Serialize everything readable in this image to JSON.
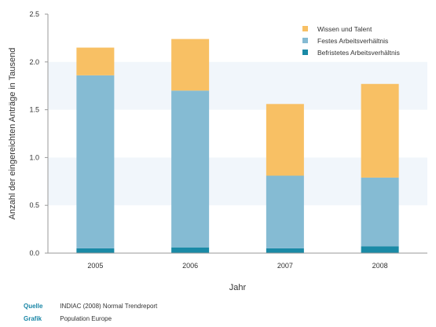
{
  "chart_data": {
    "type": "bar",
    "stacked": true,
    "categories": [
      "2005",
      "2006",
      "2007",
      "2008"
    ],
    "series": [
      {
        "name": "Befristetes Arbeitsverhältnis",
        "values": [
          0.05,
          0.06,
          0.05,
          0.07
        ],
        "color": "#1a8aa6"
      },
      {
        "name": "Festes Arbeitsverhältnis",
        "values": [
          1.81,
          1.64,
          0.76,
          0.72
        ],
        "color": "#85bbd3"
      },
      {
        "name": "Wissen und Talent",
        "values": [
          0.29,
          0.54,
          0.75,
          0.98
        ],
        "color": "#f8c064"
      }
    ],
    "legend_order": [
      2,
      1,
      0
    ],
    "legend_position": "top-right",
    "xlabel": "Jahr",
    "ylabel": "Anzahl der eingereichten Anträge in Tausend",
    "ylim": [
      0,
      2.5
    ],
    "yticks": [
      "0.0",
      "0.5",
      "1.0",
      "1.5",
      "2.0",
      "2.5"
    ],
    "grid": "alternating horizontal bands",
    "band_color": "#f1f6fb"
  },
  "footer": {
    "source_label": "Quelle",
    "source_text": "INDIAC (2008) Normal Trendreport",
    "graphic_label": "Grafik",
    "graphic_text": "Population Europe"
  }
}
